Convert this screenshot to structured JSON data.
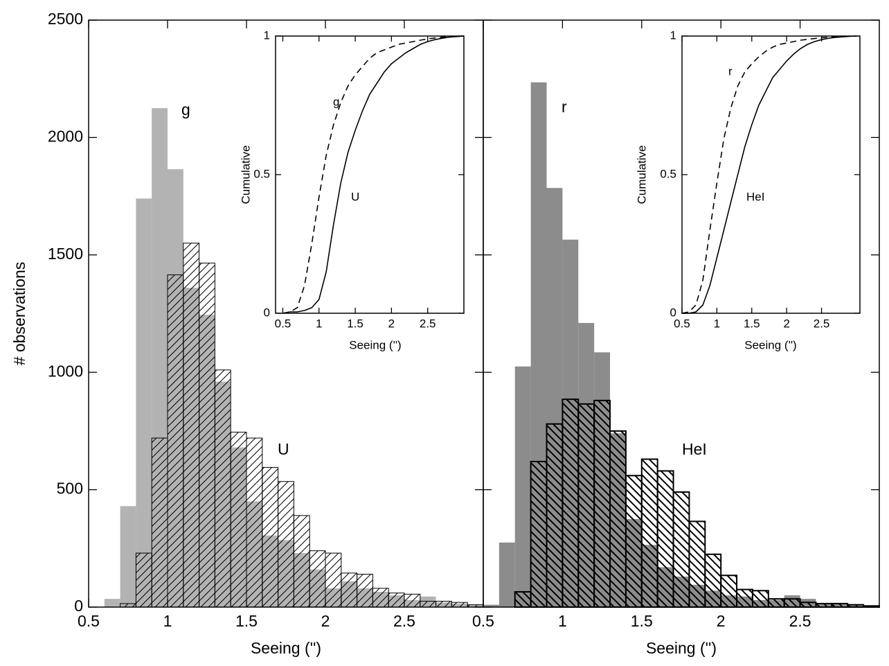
{
  "chart_data": [
    {
      "type": "histogram",
      "xlabel": "Seeing ('')",
      "ylabel": "# observations",
      "bins": [
        0.5,
        0.6,
        0.7,
        0.8,
        0.9,
        1.0,
        1.1,
        1.2,
        1.3,
        1.4,
        1.5,
        1.6,
        1.7,
        1.8,
        1.9,
        2.0,
        2.1,
        2.2,
        2.3,
        2.4,
        2.5,
        2.6,
        2.7,
        2.8,
        2.9,
        3.0
      ],
      "series": [
        {
          "name": "g",
          "color": "#b3b3b3",
          "values": [
            0,
            35,
            430,
            1740,
            2125,
            1865,
            1360,
            1245,
            960,
            680,
            450,
            305,
            285,
            230,
            160,
            80,
            110,
            80,
            65,
            50,
            30,
            45,
            20,
            15,
            10
          ]
        },
        {
          "name": "U",
          "color": "#000000",
          "pattern": "forward",
          "linewidth": 1,
          "values": [
            0,
            0,
            15,
            230,
            720,
            1415,
            1550,
            1465,
            1010,
            745,
            720,
            595,
            535,
            390,
            240,
            230,
            145,
            140,
            80,
            60,
            55,
            25,
            25,
            20,
            10
          ]
        }
      ],
      "xlim": [
        0.5,
        3.0
      ],
      "xticks": [
        0.5,
        1,
        1.5,
        2,
        2.5
      ],
      "ylim": [
        0,
        2500
      ],
      "yticks": [
        0,
        500,
        1000,
        1500,
        2000,
        2500
      ]
    },
    {
      "type": "line",
      "xlabel": "Seeing ('')",
      "ylabel": "Cumulative",
      "x": [
        0.5,
        0.6,
        0.7,
        0.8,
        0.9,
        1.0,
        1.1,
        1.2,
        1.3,
        1.4,
        1.5,
        1.6,
        1.7,
        1.8,
        1.9,
        2.0,
        2.1,
        2.2,
        2.3,
        2.4,
        2.5,
        2.6,
        2.7,
        2.8,
        2.9,
        3.0
      ],
      "series": [
        {
          "name": "g",
          "color": "#000000",
          "linestyle": "dashed",
          "values": [
            0,
            0.005,
            0.02,
            0.1,
            0.25,
            0.42,
            0.57,
            0.68,
            0.76,
            0.82,
            0.86,
            0.89,
            0.92,
            0.94,
            0.95,
            0.96,
            0.97,
            0.975,
            0.98,
            0.985,
            0.99,
            0.993,
            0.996,
            0.998,
            0.999,
            1
          ]
        },
        {
          "name": "U",
          "color": "#000000",
          "linestyle": "solid",
          "values": [
            0,
            0.005,
            0.005,
            0.01,
            0.02,
            0.05,
            0.15,
            0.32,
            0.47,
            0.58,
            0.66,
            0.73,
            0.79,
            0.83,
            0.87,
            0.9,
            0.92,
            0.94,
            0.955,
            0.97,
            0.98,
            0.987,
            0.992,
            0.996,
            0.998,
            1
          ]
        }
      ],
      "xlim": [
        0.4,
        3.0
      ],
      "xticks": [
        0.5,
        1,
        1.5,
        2,
        2.5
      ],
      "ylim": [
        0,
        1
      ],
      "yticks": [
        0,
        0.5,
        1
      ]
    },
    {
      "type": "histogram",
      "xlabel": "Seeing ('')",
      "bins": [
        0.5,
        0.6,
        0.7,
        0.8,
        0.9,
        1.0,
        1.1,
        1.2,
        1.3,
        1.4,
        1.5,
        1.6,
        1.7,
        1.8,
        1.9,
        2.0,
        2.1,
        2.2,
        2.3,
        2.4,
        2.5,
        2.6,
        2.7,
        2.8,
        2.9,
        3.0
      ],
      "series": [
        {
          "name": "r",
          "color": "#8c8c8c",
          "values": [
            10,
            275,
            1025,
            2235,
            1785,
            1565,
            1210,
            1085,
            740,
            375,
            265,
            170,
            130,
            95,
            70,
            50,
            45,
            30,
            30,
            50,
            35,
            15,
            15,
            10,
            5
          ]
        },
        {
          "name": "HeI",
          "color": "#000000",
          "pattern": "backward",
          "linewidth": 2,
          "values": [
            0,
            0,
            65,
            620,
            780,
            885,
            865,
            880,
            750,
            560,
            630,
            580,
            490,
            365,
            225,
            135,
            75,
            70,
            35,
            35,
            20,
            15,
            15,
            10,
            5
          ]
        }
      ],
      "xlim": [
        0.5,
        3.0
      ],
      "xticks": [
        0.5,
        1,
        1.5,
        2,
        2.5
      ],
      "ylim": [
        0,
        2500
      ],
      "yticks": [
        0,
        500,
        1000,
        1500,
        2000,
        2500
      ]
    },
    {
      "type": "line",
      "xlabel": "Seeing ('')",
      "ylabel": "Cumulative",
      "x": [
        0.5,
        0.6,
        0.7,
        0.8,
        0.9,
        1.0,
        1.1,
        1.2,
        1.3,
        1.4,
        1.5,
        1.6,
        1.7,
        1.8,
        1.9,
        2.0,
        2.1,
        2.2,
        2.3,
        2.4,
        2.5,
        2.6,
        2.7,
        2.8,
        2.9,
        3.0
      ],
      "series": [
        {
          "name": "r",
          "color": "#000000",
          "linestyle": "dashed",
          "values": [
            0,
            0.005,
            0.03,
            0.12,
            0.3,
            0.47,
            0.63,
            0.74,
            0.82,
            0.87,
            0.9,
            0.925,
            0.945,
            0.96,
            0.97,
            0.975,
            0.98,
            0.985,
            0.988,
            0.991,
            0.994,
            0.996,
            0.997,
            0.998,
            0.999,
            1
          ]
        },
        {
          "name": "HeI",
          "color": "#000000",
          "linestyle": "solid",
          "values": [
            0,
            0,
            0.005,
            0.03,
            0.1,
            0.2,
            0.3,
            0.4,
            0.5,
            0.6,
            0.68,
            0.75,
            0.8,
            0.85,
            0.88,
            0.91,
            0.935,
            0.955,
            0.97,
            0.98,
            0.987,
            0.992,
            0.995,
            0.997,
            0.999,
            1
          ]
        }
      ],
      "xlim": [
        0.5,
        3.05
      ],
      "xticks": [
        0.5,
        1,
        1.5,
        2,
        2.5
      ],
      "ylim": [
        0,
        1
      ],
      "yticks": [
        0,
        0.5,
        1
      ]
    }
  ]
}
